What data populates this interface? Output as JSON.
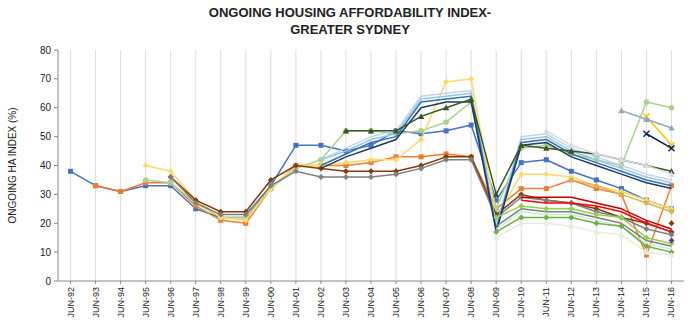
{
  "chart_data": {
    "type": "line",
    "title": "ONGOING HOUSING AFFORDABILITY INDEX-",
    "subtitle": "GREATER SYDNEY",
    "ylabel": "ONGOING HA INDEX (%)",
    "categories": [
      "JUN-92",
      "JUN-93",
      "JUN-94",
      "JUN-95",
      "JUN-96",
      "JUN-97",
      "JUN-98",
      "JUN-99",
      "JUN-00",
      "JUN-01",
      "JUN-02",
      "JUN-03",
      "JUN-04",
      "JUN-05",
      "JUN-06",
      "JUN-07",
      "JUN-08",
      "JUN-09",
      "JUN-10",
      "JUN-11",
      "JUN-12",
      "JUN-13",
      "JUN-14",
      "JUN-15",
      "JUN-16"
    ],
    "ylim": [
      0,
      80
    ],
    "yticks": [
      0,
      10,
      20,
      30,
      40,
      50,
      60,
      70,
      80
    ],
    "grid": "x",
    "series": [
      {
        "color": "#4472C4",
        "marker": "square",
        "values": [
          38,
          33,
          31,
          33,
          33,
          25,
          22,
          22,
          33,
          47,
          47,
          45,
          47,
          52,
          51,
          52,
          54,
          28,
          41,
          42,
          38,
          35,
          32,
          28,
          25
        ]
      },
      {
        "color": "#ED7D31",
        "marker": "square",
        "values": [
          null,
          33,
          31,
          34,
          34,
          26,
          21,
          20,
          32,
          40,
          40,
          40,
          41,
          43,
          43,
          44,
          43,
          25,
          32,
          32,
          35,
          32,
          30,
          9,
          33
        ]
      },
      {
        "color": "#A9D18E",
        "marker": "circle",
        "values": [
          null,
          null,
          null,
          35,
          34,
          27,
          22,
          22,
          32,
          39,
          42,
          52,
          52,
          51,
          52,
          55,
          62,
          25,
          46,
          47,
          44,
          42,
          40,
          62,
          60
        ]
      },
      {
        "color": "#FFD966",
        "marker": "diamond",
        "values": [
          null,
          null,
          null,
          40,
          38,
          28,
          22,
          21,
          32,
          40,
          40,
          41,
          42,
          42,
          49,
          69,
          70,
          22,
          37,
          37,
          36,
          33,
          31,
          28,
          25
        ]
      },
      {
        "color": "#843C0C",
        "marker": "diamond",
        "values": [
          null,
          null,
          null,
          null,
          36,
          28,
          24,
          24,
          35,
          40,
          39,
          38,
          38,
          38,
          40,
          43,
          43,
          23,
          30,
          28,
          27,
          25,
          22,
          20,
          17
        ]
      },
      {
        "color": "#808080",
        "marker": "diamond",
        "values": [
          null,
          null,
          null,
          null,
          36,
          27,
          23,
          23,
          33,
          38,
          36,
          36,
          36,
          37,
          39,
          42,
          42,
          22,
          29,
          28,
          27,
          24,
          22,
          18,
          16
        ]
      },
      {
        "color": "#BDD7EE",
        "marker": "none",
        "values": [
          null,
          null,
          null,
          null,
          null,
          null,
          null,
          null,
          null,
          null,
          42,
          46,
          50,
          52,
          64,
          65,
          66,
          19,
          50,
          51,
          46,
          43,
          40,
          37,
          35
        ]
      },
      {
        "color": "#9DC3E6",
        "marker": "none",
        "values": [
          null,
          null,
          null,
          null,
          null,
          null,
          null,
          null,
          null,
          null,
          42,
          45,
          49,
          51,
          63,
          64,
          65,
          18,
          49,
          50,
          45,
          42,
          39,
          36,
          34
        ]
      },
      {
        "color": "#2E75B6",
        "marker": "none",
        "values": [
          null,
          null,
          null,
          null,
          null,
          null,
          null,
          null,
          null,
          null,
          40,
          44,
          48,
          50,
          62,
          63,
          64,
          18,
          48,
          49,
          44,
          41,
          38,
          35,
          33
        ]
      },
      {
        "color": "#1F3864",
        "marker": "none",
        "values": [
          null,
          null,
          null,
          null,
          null,
          null,
          null,
          null,
          null,
          null,
          39,
          43,
          46,
          49,
          60,
          62,
          62,
          17,
          47,
          48,
          43,
          40,
          37,
          34,
          32
        ]
      },
      {
        "color": "#375623",
        "marker": "triangle",
        "values": [
          null,
          null,
          null,
          null,
          null,
          null,
          null,
          null,
          null,
          null,
          null,
          52,
          52,
          52,
          57,
          60,
          63,
          30,
          47,
          46,
          45,
          44,
          42,
          40,
          38
        ]
      },
      {
        "color": "#7F7F7F",
        "marker": "none",
        "values": [
          null,
          null,
          null,
          null,
          null,
          null,
          null,
          null,
          null,
          null,
          null,
          null,
          null,
          null,
          null,
          null,
          null,
          19,
          25,
          24,
          24,
          22,
          20,
          14,
          12
        ]
      },
      {
        "color": "#C6EFCE",
        "marker": "none",
        "values": [
          null,
          null,
          null,
          null,
          null,
          null,
          null,
          null,
          null,
          null,
          null,
          null,
          null,
          null,
          null,
          null,
          null,
          18,
          24,
          23,
          23,
          21,
          19,
          13,
          11
        ]
      },
      {
        "color": "#70AD47",
        "marker": "diamond",
        "values": [
          null,
          null,
          null,
          null,
          null,
          null,
          null,
          null,
          null,
          null,
          null,
          null,
          null,
          null,
          null,
          null,
          null,
          17,
          22,
          22,
          22,
          20,
          19,
          12,
          10
        ]
      },
      {
        "color": "#E2EFDA",
        "marker": "triangle",
        "values": [
          null,
          null,
          null,
          null,
          null,
          null,
          null,
          null,
          null,
          null,
          null,
          null,
          null,
          null,
          null,
          null,
          null,
          15,
          20,
          20,
          19,
          17,
          16,
          10,
          9
        ]
      },
      {
        "color": "#92D050",
        "marker": "diamond",
        "values": [
          null,
          null,
          null,
          null,
          null,
          null,
          null,
          null,
          null,
          null,
          null,
          null,
          null,
          null,
          null,
          null,
          null,
          22,
          26,
          25,
          25,
          23,
          22,
          15,
          13
        ]
      },
      {
        "color": "#C00000",
        "marker": "none",
        "values": [
          null,
          null,
          null,
          null,
          null,
          null,
          null,
          null,
          null,
          null,
          null,
          null,
          null,
          null,
          null,
          null,
          null,
          null,
          29,
          29,
          29,
          27,
          25,
          21,
          18
        ]
      },
      {
        "color": "#FF0000",
        "marker": "none",
        "values": [
          null,
          null,
          null,
          null,
          null,
          null,
          null,
          null,
          null,
          null,
          null,
          null,
          null,
          null,
          null,
          null,
          null,
          null,
          28,
          27,
          27,
          26,
          24,
          20,
          17
        ]
      },
      {
        "color": "#D6DCE4",
        "marker": "triangle",
        "values": [
          null,
          null,
          null,
          null,
          null,
          null,
          null,
          null,
          null,
          null,
          null,
          null,
          null,
          null,
          null,
          null,
          null,
          null,
          null,
          52,
          47,
          44,
          42,
          40,
          37
        ]
      },
      {
        "color": "#FFC000",
        "marker": "x",
        "values": [
          null,
          null,
          null,
          null,
          null,
          null,
          null,
          null,
          null,
          null,
          null,
          null,
          null,
          null,
          null,
          null,
          null,
          null,
          null,
          null,
          null,
          null,
          null,
          57,
          47
        ]
      },
      {
        "color": "#002060",
        "marker": "x",
        "values": [
          null,
          null,
          null,
          null,
          null,
          null,
          null,
          null,
          null,
          null,
          null,
          null,
          null,
          null,
          null,
          null,
          null,
          null,
          null,
          null,
          null,
          null,
          null,
          51,
          46
        ]
      },
      {
        "color": "#833C00",
        "marker": "diamond",
        "values": [
          null,
          null,
          null,
          null,
          null,
          null,
          null,
          null,
          null,
          null,
          null,
          null,
          null,
          null,
          null,
          null,
          null,
          null,
          null,
          null,
          null,
          null,
          null,
          null,
          20
        ]
      },
      {
        "color": "#7030A0",
        "marker": "diamond",
        "values": [
          null,
          null,
          null,
          null,
          null,
          null,
          null,
          null,
          null,
          null,
          null,
          null,
          null,
          null,
          null,
          null,
          null,
          null,
          null,
          null,
          null,
          null,
          null,
          null,
          14
        ]
      },
      {
        "color": "#D6B656",
        "marker": "diamond",
        "values": [
          null,
          null,
          null,
          null,
          null,
          null,
          null,
          null,
          null,
          null,
          null,
          null,
          null,
          null,
          null,
          null,
          null,
          null,
          null,
          null,
          35,
          33,
          30,
          27,
          24
        ]
      },
      {
        "color": "#8EA9C1",
        "marker": "triangle",
        "values": [
          null,
          null,
          null,
          null,
          null,
          null,
          null,
          null,
          null,
          null,
          null,
          null,
          null,
          null,
          null,
          null,
          null,
          null,
          null,
          null,
          null,
          null,
          59,
          56,
          53
        ]
      }
    ]
  }
}
